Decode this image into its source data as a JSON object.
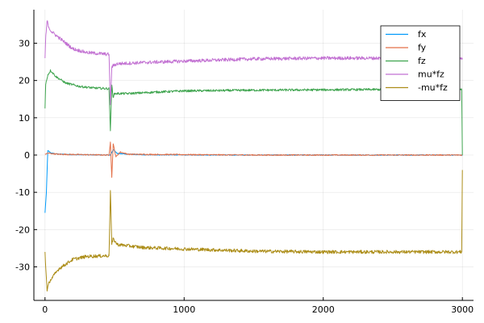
{
  "chart_data": {
    "type": "line",
    "title": "",
    "xlabel": "",
    "ylabel": "",
    "xlim": [
      -80,
      3080
    ],
    "ylim": [
      -39,
      39
    ],
    "xticks": [
      0,
      1000,
      2000,
      3000
    ],
    "xtick_labels": [
      "0",
      "1000",
      "2000",
      "3000"
    ],
    "yticks": [
      30,
      20,
      10,
      0,
      -10,
      -20,
      -30
    ],
    "ytick_labels": [
      "30",
      "20",
      "10",
      "0",
      "-10",
      "-20",
      "-30"
    ],
    "grid": true,
    "legend_position": "top-right",
    "series": [
      {
        "name": "fx",
        "color": "#009AFA",
        "noise": 0.1,
        "points": [
          [
            0,
            -15.5
          ],
          [
            10,
            -10
          ],
          [
            20,
            1.2
          ],
          [
            40,
            0.6
          ],
          [
            80,
            0.3
          ],
          [
            200,
            0.1
          ],
          [
            470,
            0.0
          ],
          [
            490,
            1.5
          ],
          [
            520,
            0.4
          ],
          [
            700,
            0.05
          ],
          [
            1500,
            0.0
          ],
          [
            2995,
            0.0
          ],
          [
            3000,
            -0.2
          ]
        ]
      },
      {
        "name": "fy",
        "color": "#E36F47",
        "noise": 0.15,
        "points": [
          [
            0,
            0.2
          ],
          [
            20,
            0.5
          ],
          [
            100,
            0.2
          ],
          [
            460,
            0.0
          ],
          [
            470,
            3.5
          ],
          [
            480,
            -6.0
          ],
          [
            490,
            3.0
          ],
          [
            510,
            -0.5
          ],
          [
            540,
            0.8
          ],
          [
            600,
            0.2
          ],
          [
            1500,
            0.0
          ],
          [
            2995,
            0.0
          ],
          [
            3000,
            0.0
          ]
        ]
      },
      {
        "name": "fz",
        "color": "#3EA44E",
        "noise": 0.3,
        "points": [
          [
            0,
            12.5
          ],
          [
            5,
            19.0
          ],
          [
            20,
            21.5
          ],
          [
            40,
            22.7
          ],
          [
            80,
            21.0
          ],
          [
            150,
            19.3
          ],
          [
            250,
            18.4
          ],
          [
            350,
            18.0
          ],
          [
            460,
            17.8
          ],
          [
            470,
            6.5
          ],
          [
            480,
            18.8
          ],
          [
            490,
            15.5
          ],
          [
            500,
            16.5
          ],
          [
            600,
            16.5
          ],
          [
            800,
            16.9
          ],
          [
            1000,
            17.2
          ],
          [
            1500,
            17.4
          ],
          [
            2000,
            17.5
          ],
          [
            2500,
            17.6
          ],
          [
            2995,
            17.6
          ],
          [
            3000,
            0.0
          ]
        ]
      },
      {
        "name": "mu*fz",
        "color": "#C271D2",
        "noise": 0.45,
        "points": [
          [
            0,
            26.0
          ],
          [
            5,
            31.5
          ],
          [
            15,
            36.0
          ],
          [
            30,
            34.0
          ],
          [
            50,
            33.0
          ],
          [
            100,
            31.5
          ],
          [
            200,
            28.5
          ],
          [
            300,
            27.5
          ],
          [
            460,
            27.0
          ],
          [
            470,
            13.5
          ],
          [
            480,
            23.5
          ],
          [
            490,
            24.0
          ],
          [
            520,
            24.5
          ],
          [
            700,
            24.8
          ],
          [
            1000,
            25.2
          ],
          [
            1500,
            25.8
          ],
          [
            2000,
            26.0
          ],
          [
            2500,
            26.0
          ],
          [
            2995,
            26.0
          ],
          [
            3000,
            26.0
          ]
        ]
      },
      {
        "name": "-mu*fz",
        "color": "#AC8D18",
        "noise": 0.45,
        "points": [
          [
            0,
            -26.0
          ],
          [
            5,
            -30.0
          ],
          [
            15,
            -36.5
          ],
          [
            30,
            -34.0
          ],
          [
            50,
            -33.0
          ],
          [
            100,
            -30.5
          ],
          [
            200,
            -28.0
          ],
          [
            300,
            -27.2
          ],
          [
            460,
            -27.0
          ],
          [
            470,
            -9.5
          ],
          [
            480,
            -24.0
          ],
          [
            490,
            -22.5
          ],
          [
            520,
            -24.0
          ],
          [
            700,
            -24.8
          ],
          [
            1000,
            -25.2
          ],
          [
            1500,
            -25.8
          ],
          [
            2000,
            -26.0
          ],
          [
            2500,
            -26.0
          ],
          [
            2995,
            -26.0
          ],
          [
            3000,
            -4.0
          ]
        ]
      }
    ]
  }
}
